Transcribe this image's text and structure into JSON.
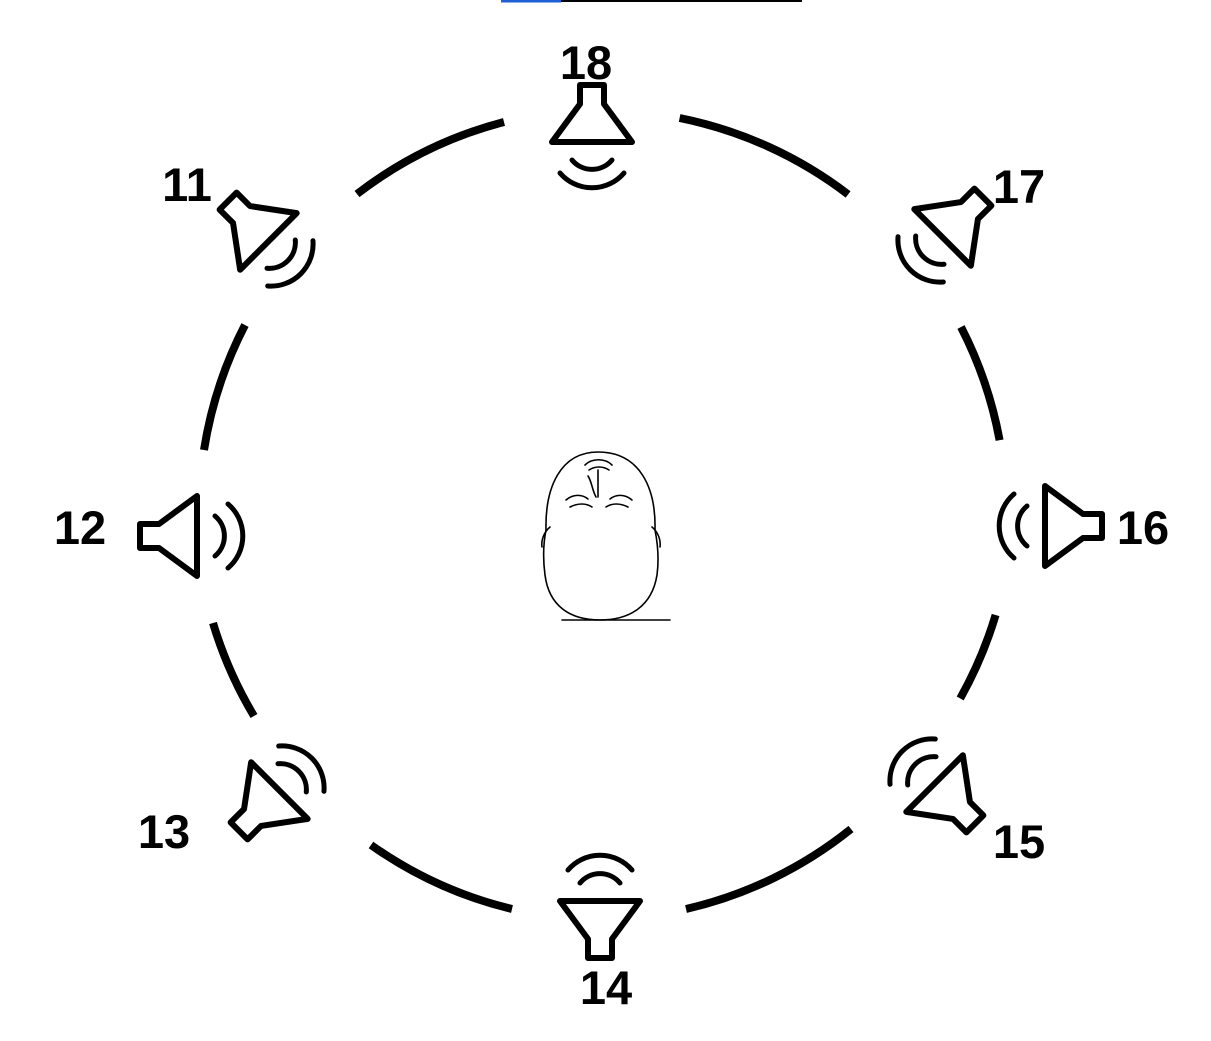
{
  "header_line": {
    "accent_color": "#1f5fd6",
    "line_color": "#000000"
  },
  "listener": {
    "icon": "listener-head-icon"
  },
  "speakers": [
    {
      "id": "s18",
      "label": "18",
      "icon": "speaker-icon"
    },
    {
      "id": "s17",
      "label": "17",
      "icon": "speaker-icon"
    },
    {
      "id": "s16",
      "label": "16",
      "icon": "speaker-icon"
    },
    {
      "id": "s15",
      "label": "15",
      "icon": "speaker-icon"
    },
    {
      "id": "s14",
      "label": "14",
      "icon": "speaker-icon"
    },
    {
      "id": "s13",
      "label": "13",
      "icon": "speaker-icon"
    },
    {
      "id": "s12",
      "label": "12",
      "icon": "speaker-icon"
    },
    {
      "id": "s11",
      "label": "11",
      "icon": "speaker-icon"
    }
  ]
}
